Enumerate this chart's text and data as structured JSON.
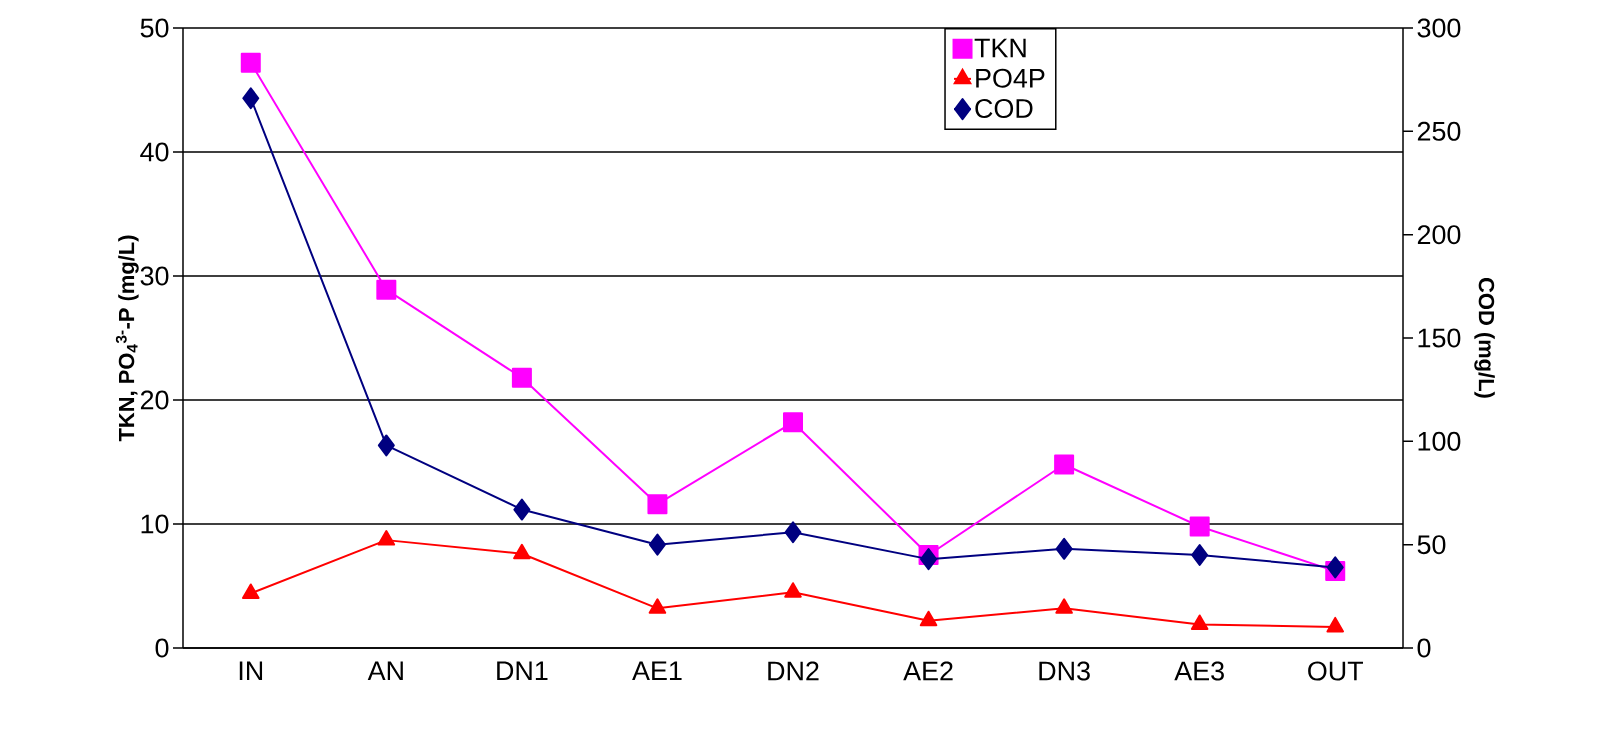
{
  "chart_data": {
    "type": "line",
    "categories": [
      "IN",
      "AN",
      "DN1",
      "AE1",
      "DN2",
      "AE2",
      "DN3",
      "AE3",
      "OUT"
    ],
    "ylabel": "TKN, PO$_{4}$$^{3-}$-P (mg/L)",
    "y2label": "COD (mg/L)",
    "ylim": [
      0,
      50
    ],
    "yticks": [
      0,
      10,
      20,
      30,
      40,
      50
    ],
    "y2lim": [
      0,
      300
    ],
    "y2ticks": [
      0,
      50,
      100,
      150,
      200,
      250,
      300
    ],
    "grid": "y",
    "legend": "top",
    "line_style": "solid",
    "series": [
      {
        "name": "TKN",
        "color": "#ff00ff",
        "marker": "square",
        "values": [
          47.2,
          28.9,
          21.8,
          11.6,
          18.2,
          7.5,
          14.8,
          9.8,
          6.2
        ]
      },
      {
        "name": "PO4P",
        "color": "#ff0000",
        "marker": "triangle",
        "values": [
          4.4,
          8.7,
          7.6,
          3.2,
          4.5,
          2.2,
          3.2,
          1.9,
          1.7
        ]
      },
      {
        "name": "COD",
        "color": "#000080",
        "marker": "diamond",
        "axis": "y2",
        "values": [
          266,
          98,
          67,
          50,
          56,
          43,
          48,
          45,
          39
        ]
      }
    ]
  }
}
